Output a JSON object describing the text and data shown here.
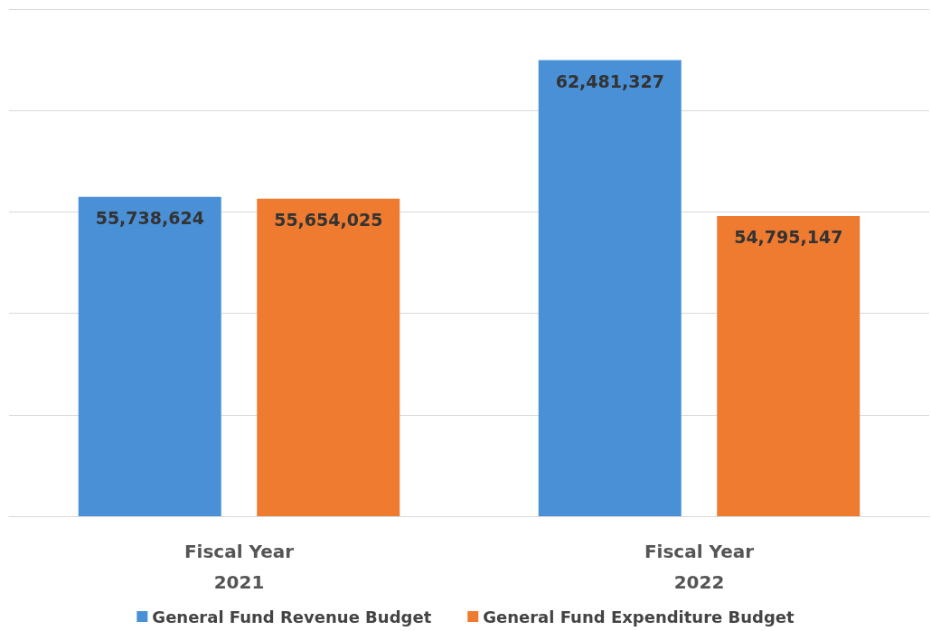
{
  "chart_data": {
    "type": "bar",
    "categories": [
      "Fiscal Year\n2021",
      "Fiscal Year\n2022"
    ],
    "series": [
      {
        "name": "General Fund Revenue Budget",
        "color": "#4a90d6",
        "values": [
          55738624,
          62481327
        ],
        "value_labels": [
          "55,738,624",
          "62,481,327"
        ]
      },
      {
        "name": "General Fund Expenditure Budget",
        "color": "#ee7b30",
        "values": [
          55654025,
          54795147
        ],
        "value_labels": [
          "55,654,025",
          "54,795,147"
        ]
      }
    ],
    "ylim": [
      40000000,
      65000000
    ],
    "tick_labels": "x",
    "grid": "y",
    "legend": "bottom"
  }
}
